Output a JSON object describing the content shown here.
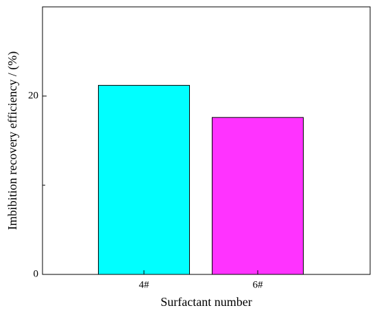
{
  "chart_data": {
    "type": "bar",
    "xlabel": "Surfactant number",
    "ylabel": "Imbibition recovery efficiency / (%)",
    "categories": [
      "4#",
      "6#"
    ],
    "values": [
      21.2,
      17.6
    ],
    "colors": [
      "#00ffff",
      "#ff33ff"
    ],
    "ylim": [
      0,
      30
    ],
    "yticks": [
      0,
      20
    ],
    "yminorticks": [
      10
    ]
  }
}
